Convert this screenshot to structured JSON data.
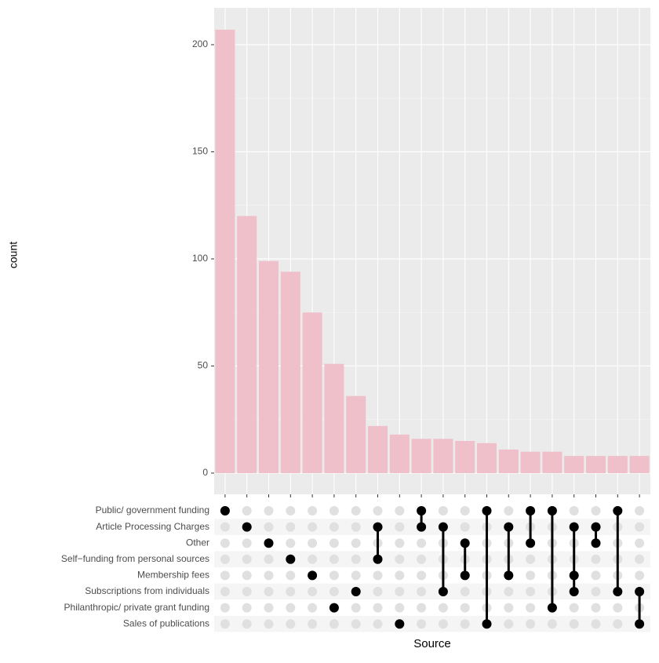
{
  "chart_data": {
    "type": "upset",
    "y_label": "count",
    "x_label": "Source",
    "sets": [
      "Public/ government funding",
      "Article Processing Charges",
      "Other",
      "Self−funding from personal sources",
      "Membership fees",
      "Subscriptions from individuals",
      "Philanthropic/ private grant funding",
      "Sales of publications"
    ],
    "combinations": [
      [
        0
      ],
      [
        1
      ],
      [
        2
      ],
      [
        3
      ],
      [
        4
      ],
      [
        6
      ],
      [
        5
      ],
      [
        1,
        3
      ],
      [
        7
      ],
      [
        0,
        1
      ],
      [
        1,
        5
      ],
      [
        2,
        4
      ],
      [
        0,
        7
      ],
      [
        1,
        4
      ],
      [
        0,
        2
      ],
      [
        0,
        6
      ],
      [
        1,
        4,
        5
      ],
      [
        1,
        2
      ],
      [
        0,
        5
      ],
      [
        5,
        7
      ]
    ],
    "values": [
      207,
      120,
      99,
      94,
      75,
      51,
      36,
      22,
      18,
      16,
      16,
      15,
      14,
      11,
      10,
      10,
      8,
      8,
      8,
      8
    ],
    "color": "#efbfca",
    "ylim": [
      -9.9,
      217.2
    ],
    "yticks": [
      0,
      50,
      100,
      150,
      200
    ],
    "grid": true
  }
}
